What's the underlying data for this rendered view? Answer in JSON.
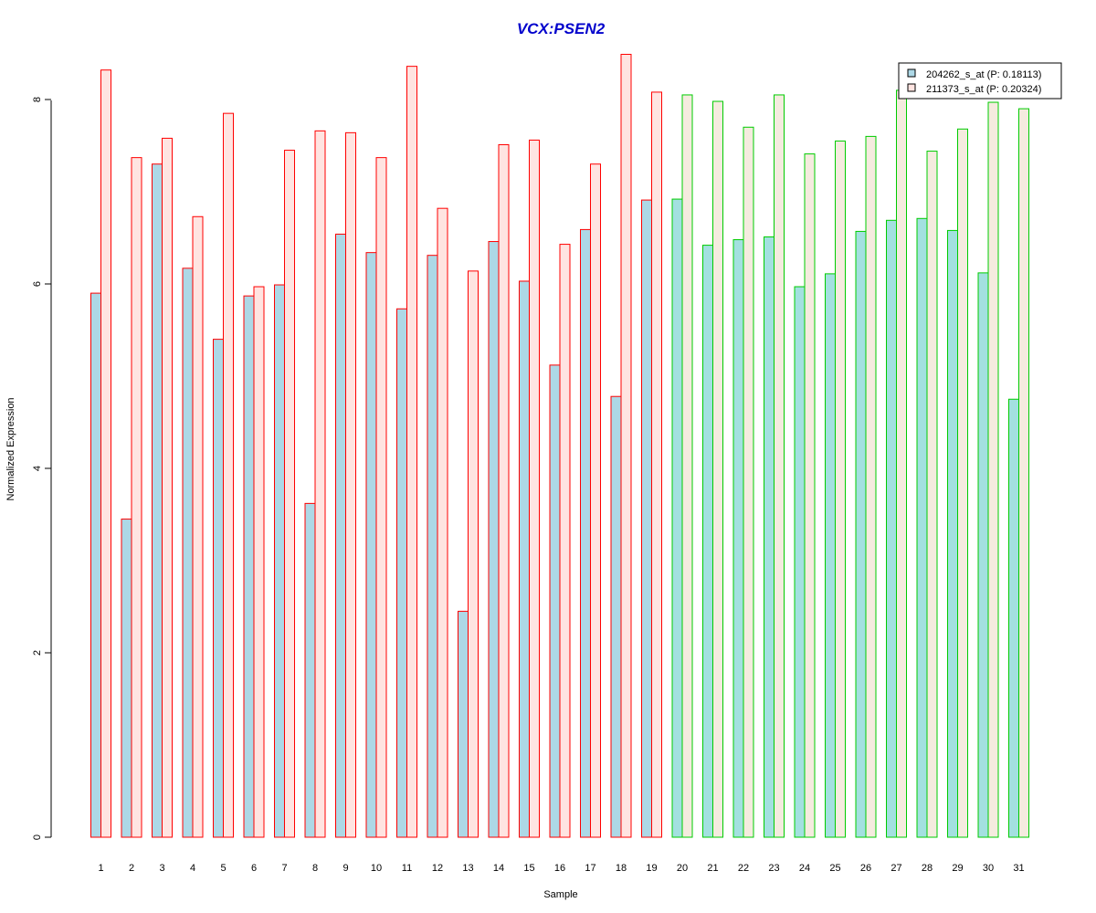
{
  "colors": {
    "title": "#0000CC",
    "series_fill": [
      "#ADD8E6",
      "#FFE4E1"
    ],
    "group_border": [
      "#FF0000",
      "#00CC00"
    ],
    "series_fill_group2": [
      "#A3E0E0",
      "#F5EBDF"
    ]
  },
  "chart_data": {
    "type": "bar",
    "title": "VCX:PSEN2",
    "xlabel": "Sample",
    "ylabel": "Normalized Expression",
    "ylim": [
      0,
      8.5
    ],
    "yticks": [
      "0",
      "2",
      "4",
      "6",
      "8"
    ],
    "grid": false,
    "legend_position": "top-right",
    "categories": [
      "1",
      "2",
      "3",
      "4",
      "5",
      "6",
      "7",
      "8",
      "9",
      "10",
      "11",
      "12",
      "13",
      "14",
      "15",
      "16",
      "17",
      "18",
      "19",
      "20",
      "21",
      "22",
      "23",
      "24",
      "25",
      "26",
      "27",
      "28",
      "29",
      "30",
      "31"
    ],
    "groups": [
      {
        "border_color": "#FF0000",
        "samples": [
          1,
          19
        ]
      },
      {
        "border_color": "#00CC00",
        "samples": [
          20,
          31
        ]
      }
    ],
    "series": [
      {
        "name": "204262_s_at (P: 0.18113)",
        "values": [
          5.9,
          3.45,
          7.3,
          6.17,
          5.4,
          5.87,
          5.99,
          3.62,
          6.54,
          6.34,
          5.73,
          6.31,
          2.45,
          6.46,
          6.03,
          5.12,
          6.59,
          4.78,
          6.91,
          6.92,
          6.42,
          6.48,
          6.51,
          5.97,
          6.11,
          6.57,
          6.69,
          6.71,
          6.58,
          6.12,
          4.75
        ]
      },
      {
        "name": "211373_s_at (P: 0.20324)",
        "values": [
          8.32,
          7.37,
          7.58,
          6.73,
          7.85,
          5.97,
          7.45,
          7.66,
          7.64,
          7.37,
          8.36,
          6.82,
          6.14,
          7.51,
          7.56,
          6.43,
          7.3,
          8.49,
          8.08,
          8.05,
          7.98,
          7.7,
          8.05,
          7.41,
          7.55,
          7.6,
          8.1,
          7.44,
          7.68,
          7.97,
          7.9
        ]
      }
    ]
  }
}
